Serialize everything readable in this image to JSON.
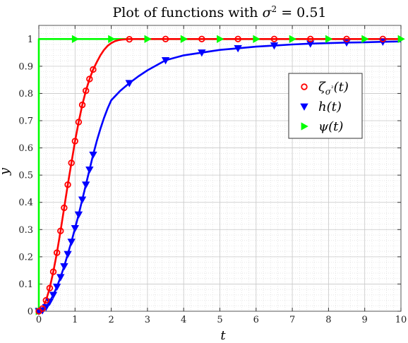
{
  "chart_data": {
    "type": "line",
    "title": "Plot of functions with σ² = 0.51",
    "xlabel": "t",
    "ylabel": "y",
    "xlim": [
      0,
      10
    ],
    "ylim": [
      0,
      1.05
    ],
    "xticks": [
      "0",
      "1",
      "2",
      "3",
      "4",
      "5",
      "6",
      "7",
      "8",
      "9",
      "10"
    ],
    "yticks": [
      "0",
      "0.1",
      "0.2",
      "0.3",
      "0.4",
      "0.5",
      "0.6",
      "0.7",
      "0.8",
      "0.9",
      "1"
    ],
    "grid": true,
    "minor_grid": true,
    "legend_position": "right-upper",
    "series": [
      {
        "name": "ζσ²(t)",
        "color": "#ff0000",
        "marker": "circle",
        "x": [
          0,
          0.1,
          0.2,
          0.3,
          0.4,
          0.5,
          0.6,
          0.7,
          0.8,
          0.9,
          1.0,
          1.1,
          1.2,
          1.3,
          1.4,
          1.5,
          2.5,
          3.5,
          4.5,
          5.5,
          6.5,
          7.5,
          8.5,
          9.5
        ],
        "y": [
          0,
          0.01,
          0.04,
          0.085,
          0.145,
          0.215,
          0.295,
          0.38,
          0.465,
          0.545,
          0.625,
          0.695,
          0.758,
          0.81,
          0.853,
          0.888,
          0.999,
          1.0,
          1.0,
          1.0,
          1.0,
          1.0,
          1.0,
          1.0
        ],
        "line_x": [
          0,
          0.1,
          0.2,
          0.3,
          0.4,
          0.5,
          0.6,
          0.7,
          0.8,
          0.9,
          1.0,
          1.1,
          1.2,
          1.3,
          1.4,
          1.5,
          1.6,
          1.7,
          1.8,
          1.9,
          2.0,
          2.1,
          2.2,
          2.3,
          2.4,
          2.5,
          3.0,
          4.0,
          6.0,
          8.0,
          10.0
        ],
        "line_y": [
          0,
          0.01,
          0.04,
          0.085,
          0.145,
          0.215,
          0.295,
          0.38,
          0.465,
          0.545,
          0.625,
          0.695,
          0.758,
          0.81,
          0.853,
          0.888,
          0.915,
          0.94,
          0.96,
          0.975,
          0.985,
          0.992,
          0.996,
          0.998,
          0.999,
          1.0,
          1.0,
          1.0,
          1.0,
          1.0,
          1.0
        ]
      },
      {
        "name": "h(t)",
        "color": "#0000ff",
        "marker": "triangle-down",
        "x": [
          0,
          0.1,
          0.2,
          0.3,
          0.4,
          0.5,
          0.6,
          0.7,
          0.8,
          0.9,
          1.0,
          1.1,
          1.2,
          1.3,
          1.4,
          1.5,
          2.5,
          3.5,
          4.5,
          5.5,
          6.5,
          7.5,
          8.5,
          9.5
        ],
        "y": [
          0,
          0.003,
          0.015,
          0.035,
          0.06,
          0.09,
          0.125,
          0.165,
          0.21,
          0.255,
          0.305,
          0.355,
          0.41,
          0.465,
          0.52,
          0.575,
          0.838,
          0.922,
          0.95,
          0.966,
          0.976,
          0.983,
          0.987,
          0.99
        ],
        "line_x": [
          0,
          0.1,
          0.2,
          0.3,
          0.4,
          0.5,
          0.6,
          0.7,
          0.8,
          0.9,
          1.0,
          1.1,
          1.2,
          1.3,
          1.4,
          1.5,
          1.6,
          1.7,
          1.8,
          1.9,
          2.0,
          2.25,
          2.5,
          2.75,
          3.0,
          3.5,
          4.0,
          4.5,
          5.0,
          5.5,
          6.0,
          6.5,
          7.0,
          7.5,
          8.0,
          8.5,
          9.0,
          9.5,
          10.0
        ],
        "line_y": [
          0,
          0.003,
          0.015,
          0.035,
          0.06,
          0.09,
          0.125,
          0.165,
          0.21,
          0.255,
          0.305,
          0.355,
          0.41,
          0.465,
          0.52,
          0.575,
          0.625,
          0.67,
          0.71,
          0.745,
          0.775,
          0.81,
          0.838,
          0.863,
          0.885,
          0.922,
          0.94,
          0.95,
          0.96,
          0.966,
          0.972,
          0.976,
          0.98,
          0.983,
          0.985,
          0.987,
          0.988,
          0.99,
          0.991
        ]
      },
      {
        "name": "ψ(t)",
        "color": "#00ff00",
        "marker": "triangle-right",
        "x": [
          0,
          1,
          2,
          3,
          4,
          5,
          6,
          7,
          8,
          9,
          10
        ],
        "y": [
          0,
          1,
          1,
          1,
          1,
          1,
          1,
          1,
          1,
          1,
          1
        ],
        "line_x": [
          0,
          0,
          10
        ],
        "line_y": [
          0,
          1,
          1
        ]
      }
    ]
  }
}
